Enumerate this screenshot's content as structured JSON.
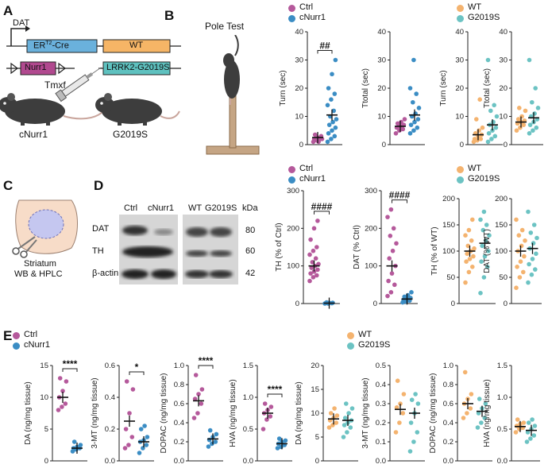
{
  "panel_letters": {
    "a": "A",
    "b": "B",
    "c": "C",
    "d": "D",
    "e": "E"
  },
  "colors": {
    "ctrl": "#b5599b",
    "cnurr1": "#3b8dc4",
    "wt": "#f4b36f",
    "g2019s": "#6cc3c3",
    "dat_box": "#6ab1dc",
    "nurr1_box": "#b1498f",
    "wt_box": "#f6b566",
    "lrrk2_box": "#5ec1bf"
  },
  "panel_a": {
    "dat_label": "DAT",
    "cre_label": "ER",
    "cre_sup": "T2",
    "cre_suffix": "-Cre",
    "nurr1_label": "Nurr1",
    "wt_label": "WT",
    "lrrk2_label": "LRRK2-G2019S",
    "tmxf_label": "Tmxf",
    "mouse1_label": "cNurr1",
    "mouse2_label": "G2019S"
  },
  "panel_b": {
    "title": "Pole Test"
  },
  "legends": {
    "ctrl": "Ctrl",
    "cnurr1": "cNurr1",
    "wt": "WT",
    "g2019s": "G2019S"
  },
  "panel_c": {
    "line1": "Striatum",
    "line2": "WB & HPLC"
  },
  "panel_d": {
    "lanes": [
      "Ctrl",
      "cNurr1",
      "WT",
      "G2019S"
    ],
    "kda_label": "kDa",
    "bands": [
      {
        "name": "DAT",
        "kda": "80"
      },
      {
        "name": "TH",
        "kda": "60"
      },
      {
        "name": "β-actin",
        "kda": "42"
      }
    ]
  },
  "chart_data": [
    {
      "type": "scatter",
      "ylabel": "Turn (sec)",
      "ylim": [
        0,
        40
      ],
      "yticks": [
        "0",
        "10",
        "20",
        "30",
        "40"
      ],
      "series": [
        {
          "name": "Ctrl",
          "mean": 2.5,
          "values": [
            1,
            1.5,
            2,
            2,
            2.5,
            3,
            3.5,
            1,
            2
          ]
        },
        {
          "name": "cNurr1",
          "mean": 10.5,
          "values": [
            1,
            2,
            3,
            4,
            5,
            6,
            7,
            8,
            9,
            10,
            12,
            14,
            16,
            18,
            20,
            25,
            30
          ]
        }
      ],
      "annotation": "##"
    },
    {
      "type": "scatter",
      "ylabel": "Ttotal (sec)",
      "ylim": [
        0,
        40
      ],
      "yticks": [
        "0",
        "10",
        "20",
        "30",
        "40"
      ],
      "series": [
        {
          "name": "Ctrl",
          "mean": 6.5,
          "values": [
            4,
            5,
            5.5,
            6,
            6.5,
            7,
            7.5,
            8,
            9
          ]
        },
        {
          "name": "cNurr1",
          "mean": 10.5,
          "values": [
            4,
            5,
            6,
            7,
            8,
            9,
            10,
            11,
            13,
            15,
            18,
            20,
            30
          ]
        }
      ]
    },
    {
      "type": "scatter",
      "ylabel": "Turn (sec)",
      "ylim": [
        0,
        40
      ],
      "yticks": [
        "0",
        "10",
        "20",
        "30",
        "40"
      ],
      "series": [
        {
          "name": "WT",
          "mean": 3.5,
          "values": [
            1,
            1.5,
            2,
            2,
            3,
            3.5,
            4,
            5,
            6,
            9,
            16
          ]
        },
        {
          "name": "G2019S",
          "mean": 7,
          "values": [
            1,
            2,
            3,
            4,
            5,
            6,
            7,
            8,
            10,
            12,
            14,
            30
          ]
        }
      ]
    },
    {
      "type": "scatter",
      "ylabel": "Ttotal (sec)",
      "ylim": [
        0,
        40
      ],
      "yticks": [
        "0",
        "10",
        "20",
        "30",
        "40"
      ],
      "series": [
        {
          "name": "WT",
          "mean": 8,
          "values": [
            5,
            6,
            7,
            7.5,
            8,
            8.5,
            9,
            10,
            12,
            13
          ]
        },
        {
          "name": "G2019S",
          "mean": 9.5,
          "values": [
            4,
            5,
            6,
            7,
            8,
            9,
            10,
            11,
            13,
            15,
            20,
            30
          ]
        }
      ]
    },
    {
      "type": "scatter",
      "ylabel": "TH (% of Ctrl)",
      "ylim": [
        0,
        300
      ],
      "yticks": [
        "0",
        "100",
        "200",
        "300"
      ],
      "series": [
        {
          "name": "Ctrl",
          "mean": 100,
          "values": [
            60,
            70,
            75,
            80,
            85,
            90,
            95,
            100,
            105,
            110,
            120,
            130,
            140,
            150,
            170,
            200,
            220
          ]
        },
        {
          "name": "cNurr1",
          "mean": 1,
          "values": [
            0,
            0,
            1,
            1,
            2,
            2,
            3
          ]
        }
      ],
      "annotation": "####"
    },
    {
      "type": "scatter",
      "ylabel": "DAT (% Ctrl)",
      "ylim": [
        0,
        300
      ],
      "yticks": [
        "0",
        "100",
        "200",
        "300"
      ],
      "series": [
        {
          "name": "Ctrl",
          "mean": 100,
          "values": [
            20,
            30,
            50,
            60,
            80,
            100,
            120,
            140,
            160,
            180,
            200,
            230,
            250
          ]
        },
        {
          "name": "cNurr1",
          "mean": 12,
          "values": [
            3,
            5,
            8,
            10,
            12,
            15,
            18,
            22,
            30
          ]
        }
      ],
      "annotation": "####"
    },
    {
      "type": "scatter",
      "ylabel": "TH (% of WT)",
      "ylim": [
        0,
        200
      ],
      "yticks": [
        "0",
        "50",
        "100",
        "150",
        "200"
      ],
      "series": [
        {
          "name": "WT",
          "mean": 100,
          "values": [
            40,
            60,
            70,
            80,
            85,
            90,
            95,
            100,
            105,
            110,
            120,
            130,
            140,
            160
          ]
        },
        {
          "name": "G2019S",
          "mean": 115,
          "values": [
            20,
            50,
            70,
            80,
            90,
            100,
            110,
            120,
            130,
            140,
            150,
            160,
            175
          ]
        }
      ]
    },
    {
      "type": "scatter",
      "ylabel": "DAT (% WT)",
      "ylim": [
        0,
        200
      ],
      "yticks": [
        "0",
        "50",
        "100",
        "150",
        "200"
      ],
      "series": [
        {
          "name": "WT",
          "mean": 100,
          "values": [
            30,
            50,
            60,
            70,
            80,
            90,
            100,
            110,
            120,
            130,
            140,
            160
          ]
        },
        {
          "name": "G2019S",
          "mean": 105,
          "values": [
            40,
            55,
            65,
            75,
            85,
            95,
            105,
            115,
            125,
            135,
            150,
            175
          ]
        }
      ]
    },
    {
      "type": "scatter",
      "ylabel": "DA (ng/mg tissue)",
      "ylim": [
        0,
        15
      ],
      "yticks": [
        "0",
        "5",
        "10",
        "15"
      ],
      "series": [
        {
          "name": "Ctrl",
          "mean": 10,
          "values": [
            8,
            8.5,
            9,
            10,
            11,
            12.5,
            13
          ]
        },
        {
          "name": "cNurr1",
          "mean": 2,
          "values": [
            1.5,
            1.8,
            2,
            2,
            2.2,
            2.5,
            3
          ]
        }
      ],
      "annotation": "****"
    },
    {
      "type": "scatter",
      "ylabel": "3-MT (ng/mg tissue)",
      "ylim": [
        0,
        0.6
      ],
      "yticks": [
        "0.0",
        "0.2",
        "0.4",
        "0.6"
      ],
      "series": [
        {
          "name": "Ctrl",
          "mean": 0.25,
          "values": [
            0.08,
            0.1,
            0.15,
            0.2,
            0.3,
            0.45,
            0.5
          ]
        },
        {
          "name": "cNurr1",
          "mean": 0.12,
          "values": [
            0.05,
            0.08,
            0.1,
            0.12,
            0.13,
            0.15,
            0.2,
            0.22
          ]
        }
      ],
      "annotation": "*"
    },
    {
      "type": "scatter",
      "ylabel": "DOPAC (ng/mg tissue)",
      "ylim": [
        0,
        1.0
      ],
      "yticks": [
        "0.0",
        "0.2",
        "0.4",
        "0.6",
        "0.8",
        "1.0"
      ],
      "series": [
        {
          "name": "Ctrl",
          "mean": 0.63,
          "values": [
            0.45,
            0.5,
            0.6,
            0.65,
            0.7,
            0.75,
            0.9
          ]
        },
        {
          "name": "cNurr1",
          "mean": 0.23,
          "values": [
            0.15,
            0.18,
            0.2,
            0.22,
            0.25,
            0.28,
            0.32
          ]
        }
      ],
      "annotation": "****"
    },
    {
      "type": "scatter",
      "ylabel": "HVA (ng/mg tissue)",
      "ylim": [
        0,
        1.5
      ],
      "yticks": [
        "0.0",
        "0.5",
        "1.0",
        "1.5"
      ],
      "series": [
        {
          "name": "Ctrl",
          "mean": 0.75,
          "values": [
            0.5,
            0.65,
            0.7,
            0.75,
            0.8,
            0.85,
            0.9
          ]
        },
        {
          "name": "cNurr1",
          "mean": 0.27,
          "values": [
            0.2,
            0.22,
            0.25,
            0.27,
            0.3,
            0.32,
            0.35
          ]
        }
      ],
      "annotation": "****"
    },
    {
      "type": "scatter",
      "ylabel": "DA (ng/mg tissue)",
      "ylim": [
        0,
        20
      ],
      "yticks": [
        "0",
        "5",
        "10",
        "15",
        "20"
      ],
      "series": [
        {
          "name": "WT",
          "mean": 8.8,
          "values": [
            7,
            7.5,
            8,
            8.5,
            9,
            9.5,
            10,
            11
          ]
        },
        {
          "name": "G2019S",
          "mean": 8.5,
          "values": [
            5,
            6,
            7,
            7.5,
            8,
            8.5,
            9,
            10,
            11,
            12
          ]
        }
      ]
    },
    {
      "type": "scatter",
      "ylabel": "3-MT (ng/mg tissue)",
      "ylim": [
        0,
        0.5
      ],
      "yticks": [
        "0.0",
        "0.1",
        "0.2",
        "0.3",
        "0.4",
        "0.5"
      ],
      "series": [
        {
          "name": "WT",
          "mean": 0.27,
          "values": [
            0.15,
            0.2,
            0.25,
            0.28,
            0.3,
            0.35,
            0.42
          ]
        },
        {
          "name": "G2019S",
          "mean": 0.25,
          "values": [
            0.05,
            0.1,
            0.15,
            0.2,
            0.25,
            0.3,
            0.32,
            0.35
          ]
        }
      ]
    },
    {
      "type": "scatter",
      "ylabel": "DOPAC (ng/mg tissue)",
      "ylim": [
        0,
        1.0
      ],
      "yticks": [
        "0.0",
        "0.2",
        "0.4",
        "0.6",
        "0.8",
        "1.0"
      ],
      "series": [
        {
          "name": "WT",
          "mean": 0.6,
          "values": [
            0.45,
            0.5,
            0.55,
            0.6,
            0.65,
            0.7,
            0.93
          ]
        },
        {
          "name": "G2019S",
          "mean": 0.52,
          "values": [
            0.35,
            0.4,
            0.45,
            0.5,
            0.55,
            0.6,
            0.65
          ]
        }
      ]
    },
    {
      "type": "scatter",
      "ylabel": "HVA (ng/mg tissue)",
      "ylim": [
        0,
        1.5
      ],
      "yticks": [
        "0.0",
        "0.5",
        "1.0",
        "1.5"
      ],
      "series": [
        {
          "name": "WT",
          "mean": 0.54,
          "values": [
            0.45,
            0.5,
            0.52,
            0.55,
            0.58,
            0.6,
            0.65
          ]
        },
        {
          "name": "G2019S",
          "mean": 0.48,
          "values": [
            0.3,
            0.35,
            0.4,
            0.45,
            0.5,
            0.55,
            0.6,
            0.65
          ]
        }
      ]
    }
  ]
}
